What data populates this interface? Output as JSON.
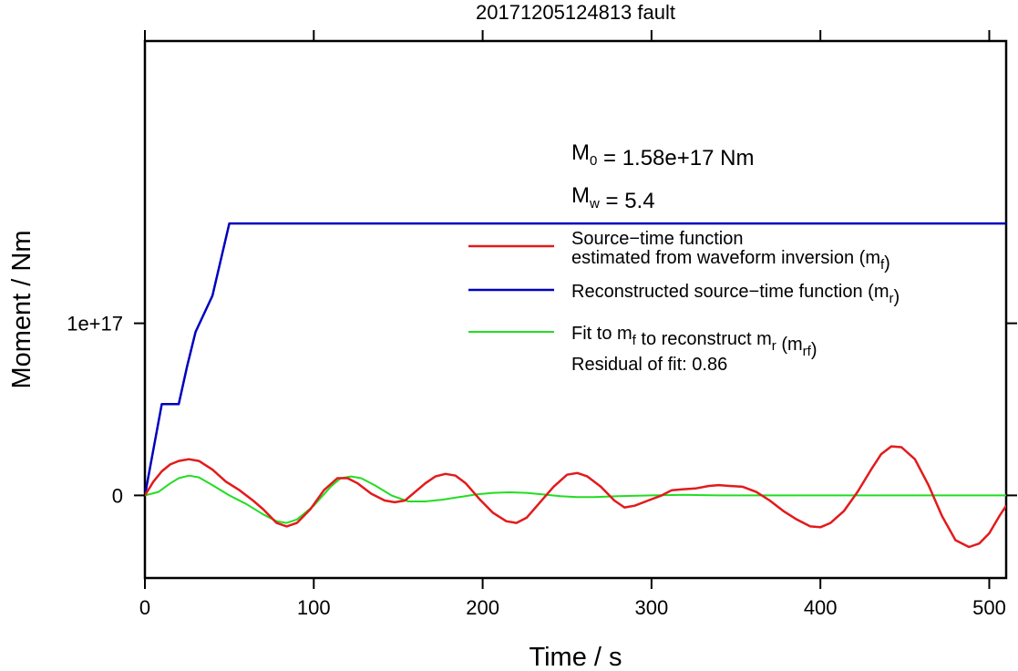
{
  "chart_data": {
    "type": "line",
    "title": "20171205124813 fault",
    "xlabel": "Time / s",
    "ylabel": "Moment / Nm",
    "xlim": [
      0,
      510
    ],
    "ylim": [
      -4.8e+16,
      2.64e+17
    ],
    "xticks": [
      0,
      100,
      200,
      300,
      400,
      500
    ],
    "xtick_labels": [
      "0",
      "100",
      "200",
      "300",
      "400",
      "500"
    ],
    "yticks": [
      0,
      1e+17
    ],
    "ytick_labels": [
      "0",
      "1e+17"
    ],
    "grid": false,
    "legend_position": "right",
    "annotations": {
      "m0": {
        "main": "M",
        "sub": "0",
        "rest": " = 1.58e+17 Nm"
      },
      "mw": {
        "main": "M",
        "sub": "w",
        "rest": " = 5.4"
      },
      "residual": "Residual of fit: 0.86"
    },
    "series": [
      {
        "key": "red",
        "color": "#e31a1c",
        "legend_lines": [
          [
            {
              "t": "Source−time function"
            }
          ],
          [
            {
              "t": "estimated from waveform inversion (m"
            },
            {
              "t": "f",
              "sub": true
            },
            {
              "t": ")"
            }
          ]
        ],
        "x": [
          0,
          5,
          10,
          15,
          20,
          26,
          32,
          40,
          48,
          56,
          64,
          70,
          78,
          84,
          90,
          98,
          106,
          114,
          120,
          126,
          134,
          142,
          148,
          154,
          160,
          166,
          172,
          178,
          184,
          190,
          198,
          206,
          214,
          220,
          226,
          234,
          242,
          250,
          256,
          262,
          270,
          278,
          284,
          290,
          298,
          306,
          312,
          318,
          326,
          334,
          340,
          346,
          354,
          362,
          370,
          378,
          386,
          394,
          400,
          406,
          414,
          422,
          430,
          436,
          442,
          448,
          456,
          464,
          472,
          480,
          488,
          494,
          500,
          506,
          510
        ],
        "y": [
          0,
          8000000000000000.0,
          1.4e+16,
          1.8e+16,
          2e+16,
          2.1e+16,
          2e+16,
          1.5e+16,
          8000000000000000.0,
          3000000000000000.0,
          -3000000000000000.0,
          -8000000000000000.0,
          -1.6e+16,
          -1.8e+16,
          -1.6e+16,
          -8000000000000000.0,
          3000000000000000.0,
          1e+16,
          1e+16,
          7000000000000000.0,
          1000000000000000.0,
          -3000000000000000.0,
          -4000000000000000.0,
          -3000000000000000.0,
          2000000000000000.0,
          7000000000000000.0,
          1.1e+16,
          1.25e+16,
          1.15e+16,
          7000000000000000.0,
          -2000000000000000.0,
          -1e+16,
          -1.5e+16,
          -1.6e+16,
          -1.3e+16,
          -4000000000000000.0,
          5000000000000000.0,
          1.2e+16,
          1.3e+16,
          1.1e+16,
          5000000000000000.0,
          -3000000000000000.0,
          -7000000000000000.0,
          -6000000000000000.0,
          -3000000000000000.0,
          0.0,
          3000000000000000.0,
          3500000000000000.0,
          4000000000000000.0,
          5500000000000000.0,
          6000000000000000.0,
          5500000000000000.0,
          5000000000000000.0,
          2000000000000000.0,
          -3000000000000000.0,
          -9000000000000000.0,
          -1.4e+16,
          -1.8e+16,
          -1.85e+16,
          -1.6e+16,
          -9000000000000000.0,
          2000000000000000.0,
          1.5e+16,
          2.4e+16,
          2.85e+16,
          2.8e+16,
          2.1e+16,
          6000000000000000.0,
          -1.2e+16,
          -2.6e+16,
          -3e+16,
          -2.8e+16,
          -2.2e+16,
          -1.2e+16,
          -6000000000000000.0
        ]
      },
      {
        "key": "blue",
        "color": "#0000c0",
        "legend_lines": [
          [
            {
              "t": "Reconstructed source−time function (m"
            },
            {
              "t": "r",
              "sub": true
            },
            {
              "t": ")"
            }
          ]
        ],
        "x": [
          0,
          10,
          20,
          25,
          30,
          40,
          50,
          510
        ],
        "y": [
          0,
          5.3e+16,
          5.3e+16,
          7.5e+16,
          9.5e+16,
          1.16e+17,
          1.58e+17,
          1.58e+17
        ]
      },
      {
        "key": "green",
        "color": "#22dd22",
        "legend_lines": [
          [
            {
              "t": "Fit to m"
            },
            {
              "t": "f",
              "sub": true
            },
            {
              "t": " to reconstruct m"
            },
            {
              "t": "r",
              "sub": true
            },
            {
              "t": " (m"
            },
            {
              "t": "rf",
              "sub": true
            },
            {
              "t": ")"
            }
          ]
        ],
        "x": [
          0,
          8,
          15,
          20,
          26,
          32,
          40,
          50,
          60,
          70,
          78,
          84,
          90,
          100,
          110,
          116,
          122,
          128,
          136,
          146,
          156,
          166,
          176,
          186,
          196,
          206,
          216,
          226,
          236,
          246,
          256,
          266,
          280,
          300,
          320,
          340,
          360,
          400,
          450,
          510
        ],
        "y": [
          0,
          2000000000000000.0,
          7000000000000000.0,
          1e+16,
          1.15e+16,
          1.05e+16,
          6000000000000000.0,
          0.0,
          -5000000000000000.0,
          -1.1e+16,
          -1.5e+16,
          -1.6e+16,
          -1.4e+16,
          -6000000000000000.0,
          5000000000000000.0,
          1e+16,
          1.1e+16,
          1e+16,
          6000000000000000.0,
          0.0,
          -3500000000000000.0,
          -3500000000000000.0,
          -2500000000000000.0,
          -1000000000000000.0,
          500000000000000.0,
          1500000000000000.0,
          1800000000000000.0,
          1500000000000000.0,
          500000000000000.0,
          -500000000000000.0,
          -1000000000000000.0,
          -1000000000000000.0,
          -500000000000000.0,
          0.0,
          300000000000000.0,
          0.0,
          0.0,
          0.0,
          0.0,
          0.0
        ]
      }
    ]
  }
}
